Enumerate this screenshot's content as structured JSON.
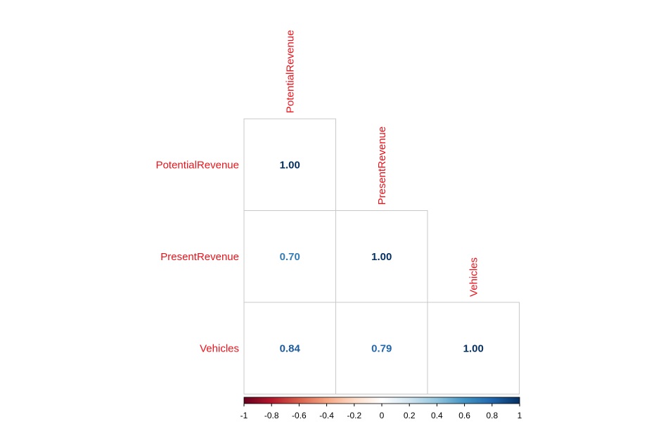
{
  "chart_data": {
    "type": "heatmap",
    "variables": [
      "PotentialRevenue",
      "PresentRevenue",
      "Vehicles"
    ],
    "matrix": [
      [
        1.0,
        null,
        null
      ],
      [
        0.7,
        1.0,
        null
      ],
      [
        0.84,
        0.79,
        1.0
      ]
    ],
    "value_labels": [
      [
        "1.00",
        "",
        ""
      ],
      [
        "0.70",
        "1.00",
        ""
      ],
      [
        "0.84",
        "0.79",
        "1.00"
      ]
    ],
    "shape": "lower-triangle",
    "colorbar": {
      "range": [
        -1,
        1
      ],
      "ticks": [
        "-1",
        "-0.8",
        "-0.6",
        "-0.4",
        "-0.2",
        "0",
        "0.2",
        "0.4",
        "0.6",
        "0.8",
        "1"
      ],
      "colors": [
        "#67001f",
        "#b2182b",
        "#d6604d",
        "#f4a582",
        "#fddbc7",
        "#ffffff",
        "#d1e5f0",
        "#92c5de",
        "#4393c3",
        "#2166ac",
        "#053061"
      ],
      "placement": "bottom"
    },
    "label_color": "#e8141b",
    "grid_color": "#c8c8c8"
  }
}
